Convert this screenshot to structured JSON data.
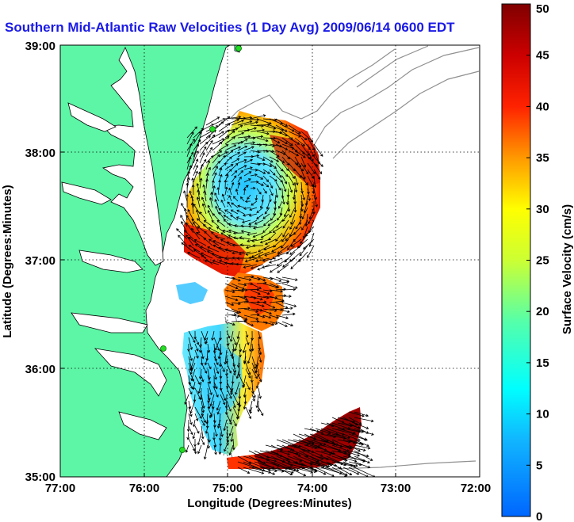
{
  "title": "Southern Mid-Atlantic Raw Velocities (1 Day Avg) 2009/06/14 0600 EDT",
  "x_axis": {
    "label": "Longitude (Degrees:Minutes)",
    "ticks": [
      "77:00",
      "76:00",
      "75:00",
      "74:00",
      "73:00",
      "72:00"
    ]
  },
  "y_axis": {
    "label": "Latitude (Degrees:Minutes)",
    "ticks": [
      "39:00",
      "38:00",
      "37:00",
      "36:00",
      "35:00"
    ]
  },
  "colorbar": {
    "label": "Surface Velocity (cm/s)",
    "min": 0,
    "max": 50,
    "ticks": [
      "0",
      "5",
      "10",
      "15",
      "20",
      "25",
      "30",
      "35",
      "40",
      "45",
      "50"
    ]
  },
  "colors": {
    "land": "#5df5a6",
    "title": "#1a1ae6",
    "bathymetry": "#909090",
    "station": "#22dd22"
  }
}
